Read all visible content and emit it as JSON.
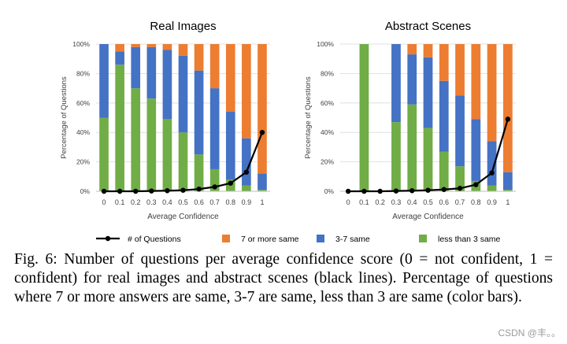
{
  "chart_data": [
    {
      "type": "bar",
      "stacked": true,
      "title": "Real Images",
      "xlabel": "Average Confidence",
      "ylabel": "Percentage of Questions",
      "categories": [
        "0",
        "0.1",
        "0.2",
        "0.3",
        "0.4",
        "0.5",
        "0.6",
        "0.7",
        "0.8",
        "0.9",
        "1"
      ],
      "ylim": [
        0,
        100
      ],
      "yticks": [
        "0%",
        "20%",
        "40%",
        "60%",
        "80%",
        "100%"
      ],
      "series": [
        {
          "name": "less than 3 same",
          "color": "#70ad47",
          "values": [
            50,
            86,
            70,
            63,
            49,
            40,
            25,
            15,
            8,
            4,
            1
          ]
        },
        {
          "name": "3-7 same",
          "color": "#4472c4",
          "values": [
            50,
            9,
            28,
            35,
            47,
            52,
            57,
            55,
            46,
            32,
            11
          ]
        },
        {
          "name": "7 or more same",
          "color": "#ed7d31",
          "values": [
            0,
            5,
            2,
            2,
            4,
            8,
            18,
            30,
            46,
            64,
            88
          ]
        }
      ],
      "line": {
        "name": "# of Questions",
        "color": "#000000",
        "values": [
          0,
          0,
          0,
          0.2,
          0.4,
          0.7,
          1.5,
          3,
          5.5,
          13,
          40
        ]
      }
    },
    {
      "type": "bar",
      "stacked": true,
      "title": "Abstract Scenes",
      "xlabel": "Average Confidence",
      "ylabel": "Percentage of Questions",
      "categories": [
        "0",
        "0.1",
        "0.2",
        "0.3",
        "0.4",
        "0.5",
        "0.6",
        "0.7",
        "0.8",
        "0.9",
        "1"
      ],
      "ylim": [
        0,
        100
      ],
      "yticks": [
        "0%",
        "20%",
        "40%",
        "60%",
        "80%",
        "100%"
      ],
      "series": [
        {
          "name": "less than 3 same",
          "color": "#70ad47",
          "values": [
            0,
            100,
            0,
            47,
            59,
            43,
            27,
            17,
            7,
            4,
            1
          ]
        },
        {
          "name": "3-7 same",
          "color": "#4472c4",
          "values": [
            0,
            0,
            0,
            53,
            34,
            48,
            48,
            48,
            42,
            30,
            12
          ]
        },
        {
          "name": "7 or more same",
          "color": "#ed7d31",
          "values": [
            0,
            0,
            0,
            0,
            7,
            9,
            25,
            35,
            51,
            66,
            87
          ]
        }
      ],
      "line": {
        "name": "# of Questions",
        "color": "#000000",
        "values": [
          0,
          0,
          0,
          0.2,
          0.4,
          0.7,
          1.2,
          2,
          4.5,
          12.5,
          49
        ]
      }
    }
  ],
  "legend": [
    {
      "label": "# of Questions",
      "kind": "line",
      "color": "#000000"
    },
    {
      "label": "7 or more same",
      "kind": "box",
      "color": "#ed7d31"
    },
    {
      "label": "3-7 same",
      "kind": "box",
      "color": "#4472c4"
    },
    {
      "label": "less than 3 same",
      "kind": "box",
      "color": "#70ad47"
    }
  ],
  "caption": "Fig. 6: Number of questions per average confidence score (0 = not confident, 1 = confident) for real images and abstract scenes (black lines). Percentage of questions where 7 or more answers are same, 3-7 are same, less than 3 are same (color bars).",
  "watermark": "CSDN @丰。。"
}
